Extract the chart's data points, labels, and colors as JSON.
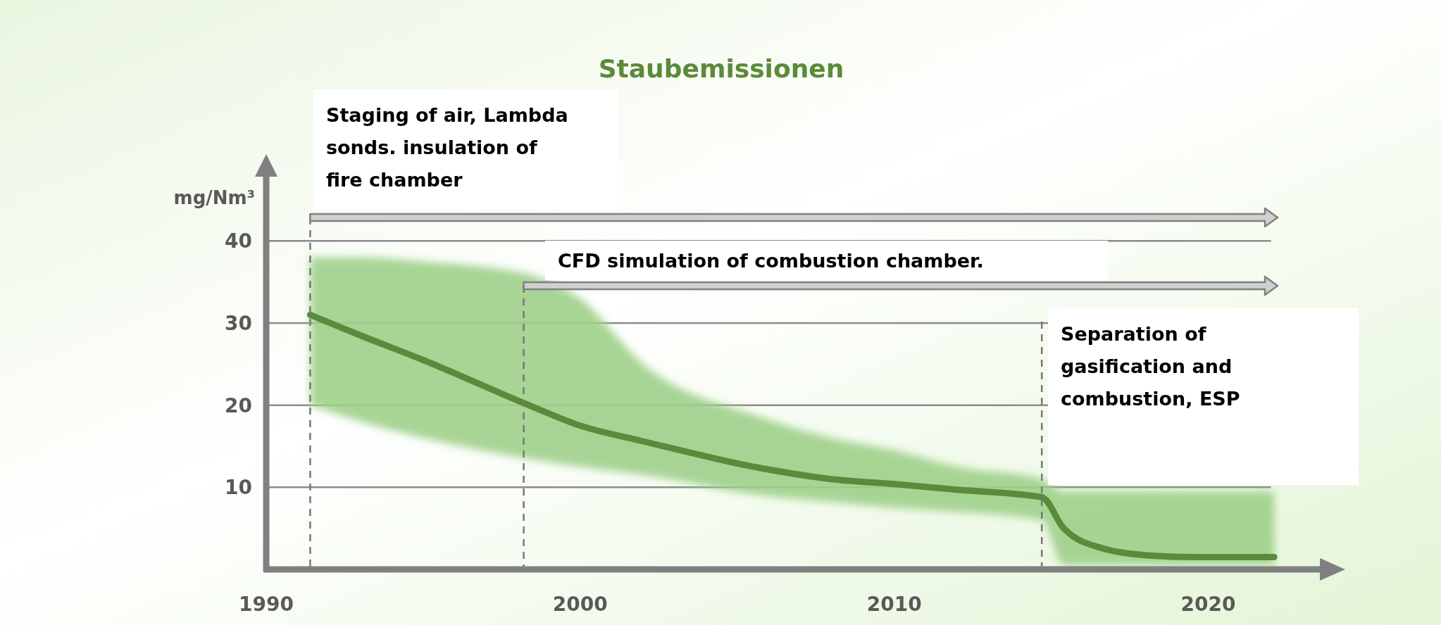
{
  "chart_data": {
    "type": "line",
    "title": "Staubemissionen",
    "ylabel": "mg/Nm³",
    "x": [
      1991.4,
      1993,
      1995,
      1998.3,
      2000,
      2002,
      2005.8,
      2008,
      2010,
      2012,
      2014.7,
      2015.4,
      2016.6,
      2018.1,
      2019.6,
      2022.1
    ],
    "series": [
      {
        "color": "#5a8a3c",
        "values": [
          31,
          28.5,
          25.5,
          20.1,
          17.5,
          15.6,
          12.3,
          11,
          10.4,
          9.7,
          8.8,
          5,
          2.6,
          1.7,
          1.5,
          1.5
        ],
        "lower": [
          20,
          18,
          16,
          13.5,
          12.5,
          11.5,
          9,
          8.2,
          7.5,
          7,
          6,
          0.5,
          0.5,
          0.5,
          0.5,
          0.5
        ],
        "upper": [
          38,
          38,
          37.5,
          36,
          33,
          25,
          18.5,
          16,
          14.5,
          12.5,
          11,
          9.5,
          9.5,
          9.5,
          9.5,
          9.5
        ]
      }
    ],
    "xlim": [
      1990,
      2023.6
    ],
    "ylim": [
      0,
      48
    ],
    "xticks": [
      1990,
      2000,
      2010,
      2020
    ],
    "yticks": [
      10,
      20,
      30,
      40
    ],
    "grid": "y",
    "ref_lines": [
      {
        "axis": "x",
        "value": 1991.4,
        "line_style": "dashed",
        "color": "#777777"
      },
      {
        "axis": "x",
        "value": 1998.2,
        "line_style": "dashed",
        "color": "#777777"
      },
      {
        "axis": "x",
        "value": 2014.7,
        "line_style": "dashed",
        "color": "#777777"
      }
    ],
    "annotations": [
      "Staging of air, Lambda sonds. insulation of fire chamber",
      "CFD simulation of combustion chamber.",
      "Separation of gasification and combustion, ESP"
    ]
  }
}
